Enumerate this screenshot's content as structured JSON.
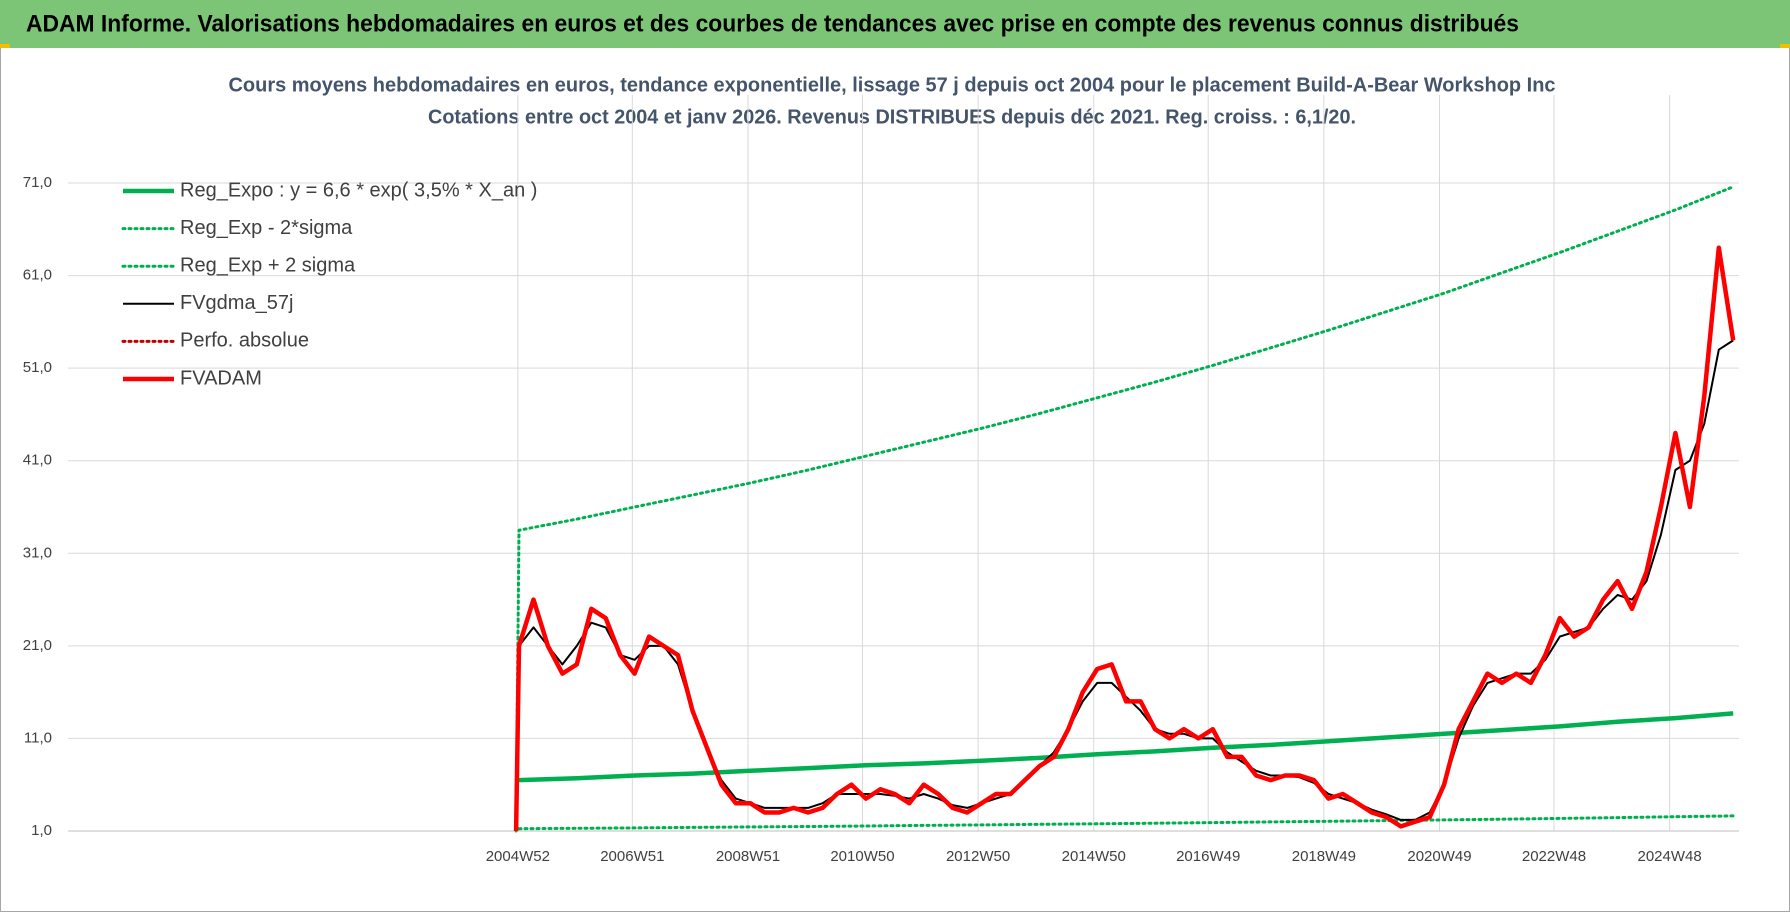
{
  "header": {
    "title": "ADAM Informe. Valorisations hebdomadaires en euros et des courbes de tendances avec prise en compte des revenus connus distribués"
  },
  "chart_data": {
    "type": "line",
    "title": "Cours moyens hebdomadaires en euros, tendance exponentielle, lissage 57 j depuis oct 2004 pour le placement Build-A-Bear Workshop Inc",
    "subtitle": "Cotations entre oct 2004 et janv 2026. Revenus DISTRIBUES depuis déc 2021. Reg. croiss. : 6,1/20.",
    "xlim": [
      1997.2,
      2026.1
    ],
    "xticks": [
      {
        "value": 2004.98,
        "label": "2004W52"
      },
      {
        "value": 2006.96,
        "label": "2006W51"
      },
      {
        "value": 2008.96,
        "label": "2008W51"
      },
      {
        "value": 2010.94,
        "label": "2010W50"
      },
      {
        "value": 2012.94,
        "label": "2012W50"
      },
      {
        "value": 2014.94,
        "label": "2014W50"
      },
      {
        "value": 2016.92,
        "label": "2016W49"
      },
      {
        "value": 2018.92,
        "label": "2018W49"
      },
      {
        "value": 2020.92,
        "label": "2020W49"
      },
      {
        "value": 2022.9,
        "label": "2022W48"
      },
      {
        "value": 2024.9,
        "label": "2024W48"
      }
    ],
    "ylim": [
      1,
      79
    ],
    "yticks": [
      {
        "value": 1,
        "label": "1,0"
      },
      {
        "value": 11,
        "label": "11,0"
      },
      {
        "value": 21,
        "label": "21,0"
      },
      {
        "value": 31,
        "label": "31,0"
      },
      {
        "value": 41,
        "label": "41,0"
      },
      {
        "value": 51,
        "label": "51,0"
      },
      {
        "value": 61,
        "label": "61,0"
      },
      {
        "value": 71,
        "label": "71,0"
      }
    ],
    "grid": true,
    "legend": "top-left",
    "series": [
      {
        "name": "Reg_Expo : y = 6,6 * exp( 3,5% *  X_an )",
        "color": "#00b050",
        "style": "thick",
        "x": [
          2005,
          2006,
          2007,
          2008,
          2009,
          2010,
          2011,
          2012,
          2013,
          2014,
          2015,
          2016,
          2017,
          2018,
          2019,
          2020,
          2021,
          2022,
          2023,
          2024,
          2025,
          2026
        ],
        "values": [
          6.5,
          6.7,
          7.0,
          7.2,
          7.5,
          7.8,
          8.1,
          8.3,
          8.6,
          8.9,
          9.3,
          9.6,
          10.0,
          10.3,
          10.7,
          11.1,
          11.5,
          11.9,
          12.3,
          12.8,
          13.2,
          13.7
        ]
      },
      {
        "name": "Reg_Exp - 2*sigma",
        "color": "#00b050",
        "style": "dotted",
        "x": [
          2005,
          2006,
          2007,
          2008,
          2009,
          2010,
          2011,
          2012,
          2013,
          2014,
          2015,
          2016,
          2017,
          2018,
          2019,
          2020,
          2021,
          2022,
          2023,
          2024,
          2025,
          2026
        ],
        "values": [
          1.25,
          1.29,
          1.34,
          1.39,
          1.44,
          1.49,
          1.54,
          1.6,
          1.66,
          1.72,
          1.78,
          1.84,
          1.91,
          1.98,
          2.05,
          2.12,
          2.2,
          2.28,
          2.36,
          2.45,
          2.54,
          2.63
        ]
      },
      {
        "name": "Reg_Exp + 2 sigma",
        "color": "#00b050",
        "style": "dotted",
        "x": [
          2004.95,
          2005,
          2006,
          2007,
          2008,
          2009,
          2010,
          2011,
          2012,
          2013,
          2014,
          2015,
          2016,
          2017,
          2018,
          2019,
          2020,
          2021,
          2022,
          2023,
          2024,
          2025,
          2026
        ],
        "values": [
          1.0,
          33.5,
          34.7,
          36.0,
          37.3,
          38.6,
          40.0,
          41.5,
          43.0,
          44.5,
          46.1,
          47.8,
          49.5,
          51.3,
          53.2,
          55.1,
          57.1,
          59.1,
          61.3,
          63.5,
          65.8,
          68.1,
          70.6
        ]
      },
      {
        "name": "FVgdma_57j",
        "color": "#000000",
        "style": "thin",
        "x": [
          2005,
          2005.25,
          2005.5,
          2005.75,
          2006,
          2006.25,
          2006.5,
          2006.75,
          2007,
          2007.25,
          2007.5,
          2007.75,
          2008,
          2008.25,
          2008.5,
          2008.75,
          2009,
          2009.25,
          2009.5,
          2009.75,
          2010,
          2010.25,
          2010.5,
          2010.75,
          2011,
          2011.25,
          2011.5,
          2011.75,
          2012,
          2012.25,
          2012.5,
          2012.75,
          2013,
          2013.25,
          2013.5,
          2013.75,
          2014,
          2014.25,
          2014.5,
          2014.75,
          2015,
          2015.25,
          2015.5,
          2015.75,
          2016,
          2016.25,
          2016.5,
          2016.75,
          2017,
          2017.25,
          2017.5,
          2017.75,
          2018,
          2018.25,
          2018.5,
          2018.75,
          2019,
          2019.25,
          2019.5,
          2019.75,
          2020,
          2020.25,
          2020.5,
          2020.75,
          2021,
          2021.25,
          2021.5,
          2021.75,
          2022,
          2022.25,
          2022.5,
          2022.75,
          2023,
          2023.25,
          2023.5,
          2023.75,
          2024,
          2024.25,
          2024.5,
          2024.75,
          2025,
          2025.25,
          2025.5,
          2025.75,
          2026
        ],
        "values": [
          21,
          23,
          21,
          19,
          21,
          23.5,
          23,
          20,
          19.5,
          21,
          21,
          19,
          14,
          10,
          6.5,
          4.5,
          4,
          3.5,
          3.5,
          3.5,
          3.5,
          4,
          5,
          5,
          5,
          5,
          4.8,
          4.5,
          5,
          4.5,
          3.8,
          3.5,
          4,
          4.5,
          5,
          6.5,
          8,
          9.5,
          12,
          15,
          17,
          17,
          15.5,
          14,
          12,
          11.5,
          11.5,
          11,
          11,
          9.5,
          8.5,
          7.5,
          7,
          7,
          6.8,
          6.2,
          5,
          4.5,
          4,
          3.3,
          2.8,
          2.2,
          2.2,
          3,
          6,
          11,
          14.5,
          17,
          17.5,
          18,
          18,
          19.5,
          22,
          22.5,
          23,
          25,
          26.5,
          26,
          28,
          33,
          40,
          41,
          45,
          53,
          54
        ]
      },
      {
        "name": "Perfo. absolue",
        "color": "#c00000",
        "style": "dotted",
        "x": [],
        "values": []
      },
      {
        "name": "FVADAM",
        "color": "#ff0000",
        "style": "thick",
        "x": [
          2004.95,
          2005,
          2005.25,
          2005.5,
          2005.75,
          2006,
          2006.25,
          2006.5,
          2006.75,
          2007,
          2007.25,
          2007.5,
          2007.75,
          2008,
          2008.25,
          2008.5,
          2008.75,
          2009,
          2009.25,
          2009.5,
          2009.75,
          2010,
          2010.25,
          2010.5,
          2010.75,
          2011,
          2011.25,
          2011.5,
          2011.75,
          2012,
          2012.25,
          2012.5,
          2012.75,
          2013,
          2013.25,
          2013.5,
          2013.75,
          2014,
          2014.25,
          2014.5,
          2014.75,
          2015,
          2015.25,
          2015.5,
          2015.75,
          2016,
          2016.25,
          2016.5,
          2016.75,
          2017,
          2017.25,
          2017.5,
          2017.75,
          2018,
          2018.25,
          2018.5,
          2018.75,
          2019,
          2019.25,
          2019.5,
          2019.75,
          2020,
          2020.25,
          2020.5,
          2020.75,
          2021,
          2021.25,
          2021.5,
          2021.75,
          2022,
          2022.25,
          2022.5,
          2022.75,
          2023,
          2023.25,
          2023.5,
          2023.75,
          2024,
          2024.25,
          2024.5,
          2024.75,
          2025,
          2025.25,
          2025.5,
          2025.75,
          2026
        ],
        "values": [
          1.0,
          21,
          26,
          21,
          18,
          19,
          25,
          24,
          20,
          18,
          22,
          21,
          20,
          14,
          10,
          6,
          4,
          4,
          3,
          3,
          3.5,
          3,
          3.5,
          5,
          6,
          4.5,
          5.5,
          5,
          4,
          6,
          5,
          3.5,
          3,
          4,
          5,
          5,
          6.5,
          8,
          9,
          12,
          16,
          18.5,
          19,
          15,
          15,
          12,
          11,
          12,
          11,
          12,
          9,
          9,
          7,
          6.5,
          7,
          7,
          6.5,
          4.5,
          5,
          4,
          3,
          2.5,
          1.5,
          2,
          2.5,
          6,
          12,
          15,
          18,
          17,
          18,
          17,
          20,
          24,
          22,
          23,
          26,
          28,
          25,
          29,
          36,
          44,
          36,
          48,
          64,
          54
        ]
      }
    ]
  }
}
